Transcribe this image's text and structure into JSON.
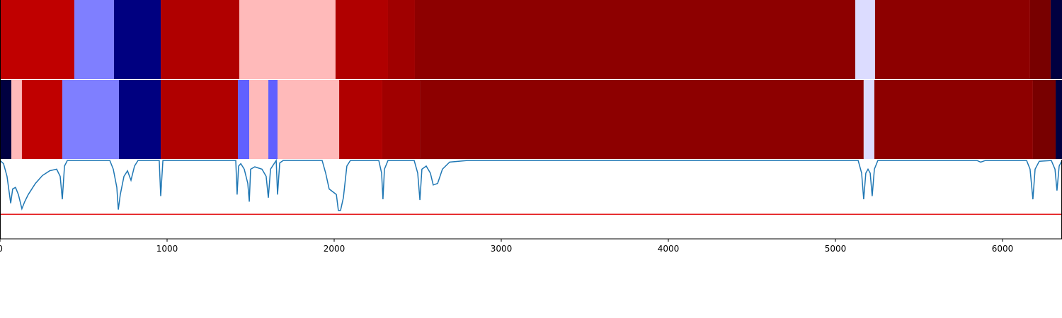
{
  "chart_data": {
    "type": "segmentation",
    "xlim": [
      0,
      6356
    ],
    "xticks": [
      0,
      1000,
      2000,
      3000,
      4000,
      5000,
      6000
    ],
    "tracks": [
      {
        "edges": [
          0,
          445,
          682,
          962,
          1432,
          2008,
          2322,
          2483,
          5119,
          5237,
          6165,
          6288,
          6356
        ],
        "colors": [
          "#c00000",
          "#7f7fff",
          "#000080",
          "#b00000",
          "#ffbaba",
          "#b00000",
          "#a00000",
          "#8d0000",
          "#dcdcff",
          "#8d0000",
          "#780000",
          "#000040"
        ]
      },
      {
        "edges": [
          0,
          68,
          131,
          373,
          712,
          962,
          1424,
          1492,
          1606,
          1661,
          2030,
          2288,
          2513,
          5169,
          5233,
          6182,
          6318,
          6356
        ],
        "colors": [
          "#000040",
          "#ffbaba",
          "#c00000",
          "#7f7fff",
          "#000080",
          "#b00000",
          "#6060ff",
          "#ffbaba",
          "#6060ff",
          "#ffbaba",
          "#b00000",
          "#a00000",
          "#8d0000",
          "#dcdcff",
          "#8d0000",
          "#780000",
          "#000040"
        ]
      }
    ],
    "ylim": [
      0,
      1
    ],
    "threshold": 0.31,
    "threshold_color": "#e41a1c",
    "series": [
      {
        "color": "#1f77b4",
        "x": [
          0,
          21,
          42,
          64,
          76,
          93,
          110,
          131,
          148,
          169,
          212,
          254,
          297,
          339,
          360,
          373,
          386,
          403,
          657,
          678,
          699,
          708,
          720,
          742,
          763,
          784,
          805,
          826,
          953,
          962,
          975,
          1411,
          1419,
          1428,
          1441,
          1462,
          1483,
          1492,
          1500,
          1525,
          1568,
          1593,
          1606,
          1619,
          1653,
          1661,
          1674,
          1695,
          1928,
          1949,
          1970,
          2013,
          2025,
          2038,
          2055,
          2076,
          2097,
          2267,
          2284,
          2292,
          2301,
          2322,
          2479,
          2500,
          2513,
          2525,
          2551,
          2576,
          2593,
          2619,
          2648,
          2691,
          2797,
          5136,
          5157,
          5169,
          5182,
          5195,
          5208,
          5220,
          5233,
          5254,
          5847,
          5869,
          5898,
          6144,
          6165,
          6182,
          6195,
          6220,
          6292,
          6314,
          6326,
          6339,
          6356
        ],
        "values": [
          0.99,
          0.95,
          0.79,
          0.45,
          0.63,
          0.65,
          0.56,
          0.38,
          0.47,
          0.56,
          0.7,
          0.8,
          0.86,
          0.88,
          0.79,
          0.5,
          0.92,
          0.99,
          0.99,
          0.88,
          0.65,
          0.37,
          0.56,
          0.79,
          0.86,
          0.74,
          0.92,
          0.99,
          0.99,
          0.54,
          0.99,
          0.99,
          0.56,
          0.92,
          0.95,
          0.88,
          0.7,
          0.47,
          0.88,
          0.91,
          0.88,
          0.79,
          0.52,
          0.88,
          0.99,
          0.56,
          0.96,
          0.99,
          0.99,
          0.83,
          0.63,
          0.56,
          0.36,
          0.36,
          0.52,
          0.92,
          0.99,
          0.99,
          0.83,
          0.5,
          0.88,
          0.99,
          0.99,
          0.83,
          0.49,
          0.88,
          0.92,
          0.83,
          0.68,
          0.7,
          0.88,
          0.97,
          0.99,
          0.99,
          0.83,
          0.5,
          0.83,
          0.88,
          0.83,
          0.54,
          0.88,
          0.99,
          0.99,
          0.97,
          0.99,
          0.99,
          0.88,
          0.5,
          0.88,
          0.98,
          0.99,
          0.88,
          0.61,
          0.92,
          0.99
        ]
      }
    ]
  }
}
